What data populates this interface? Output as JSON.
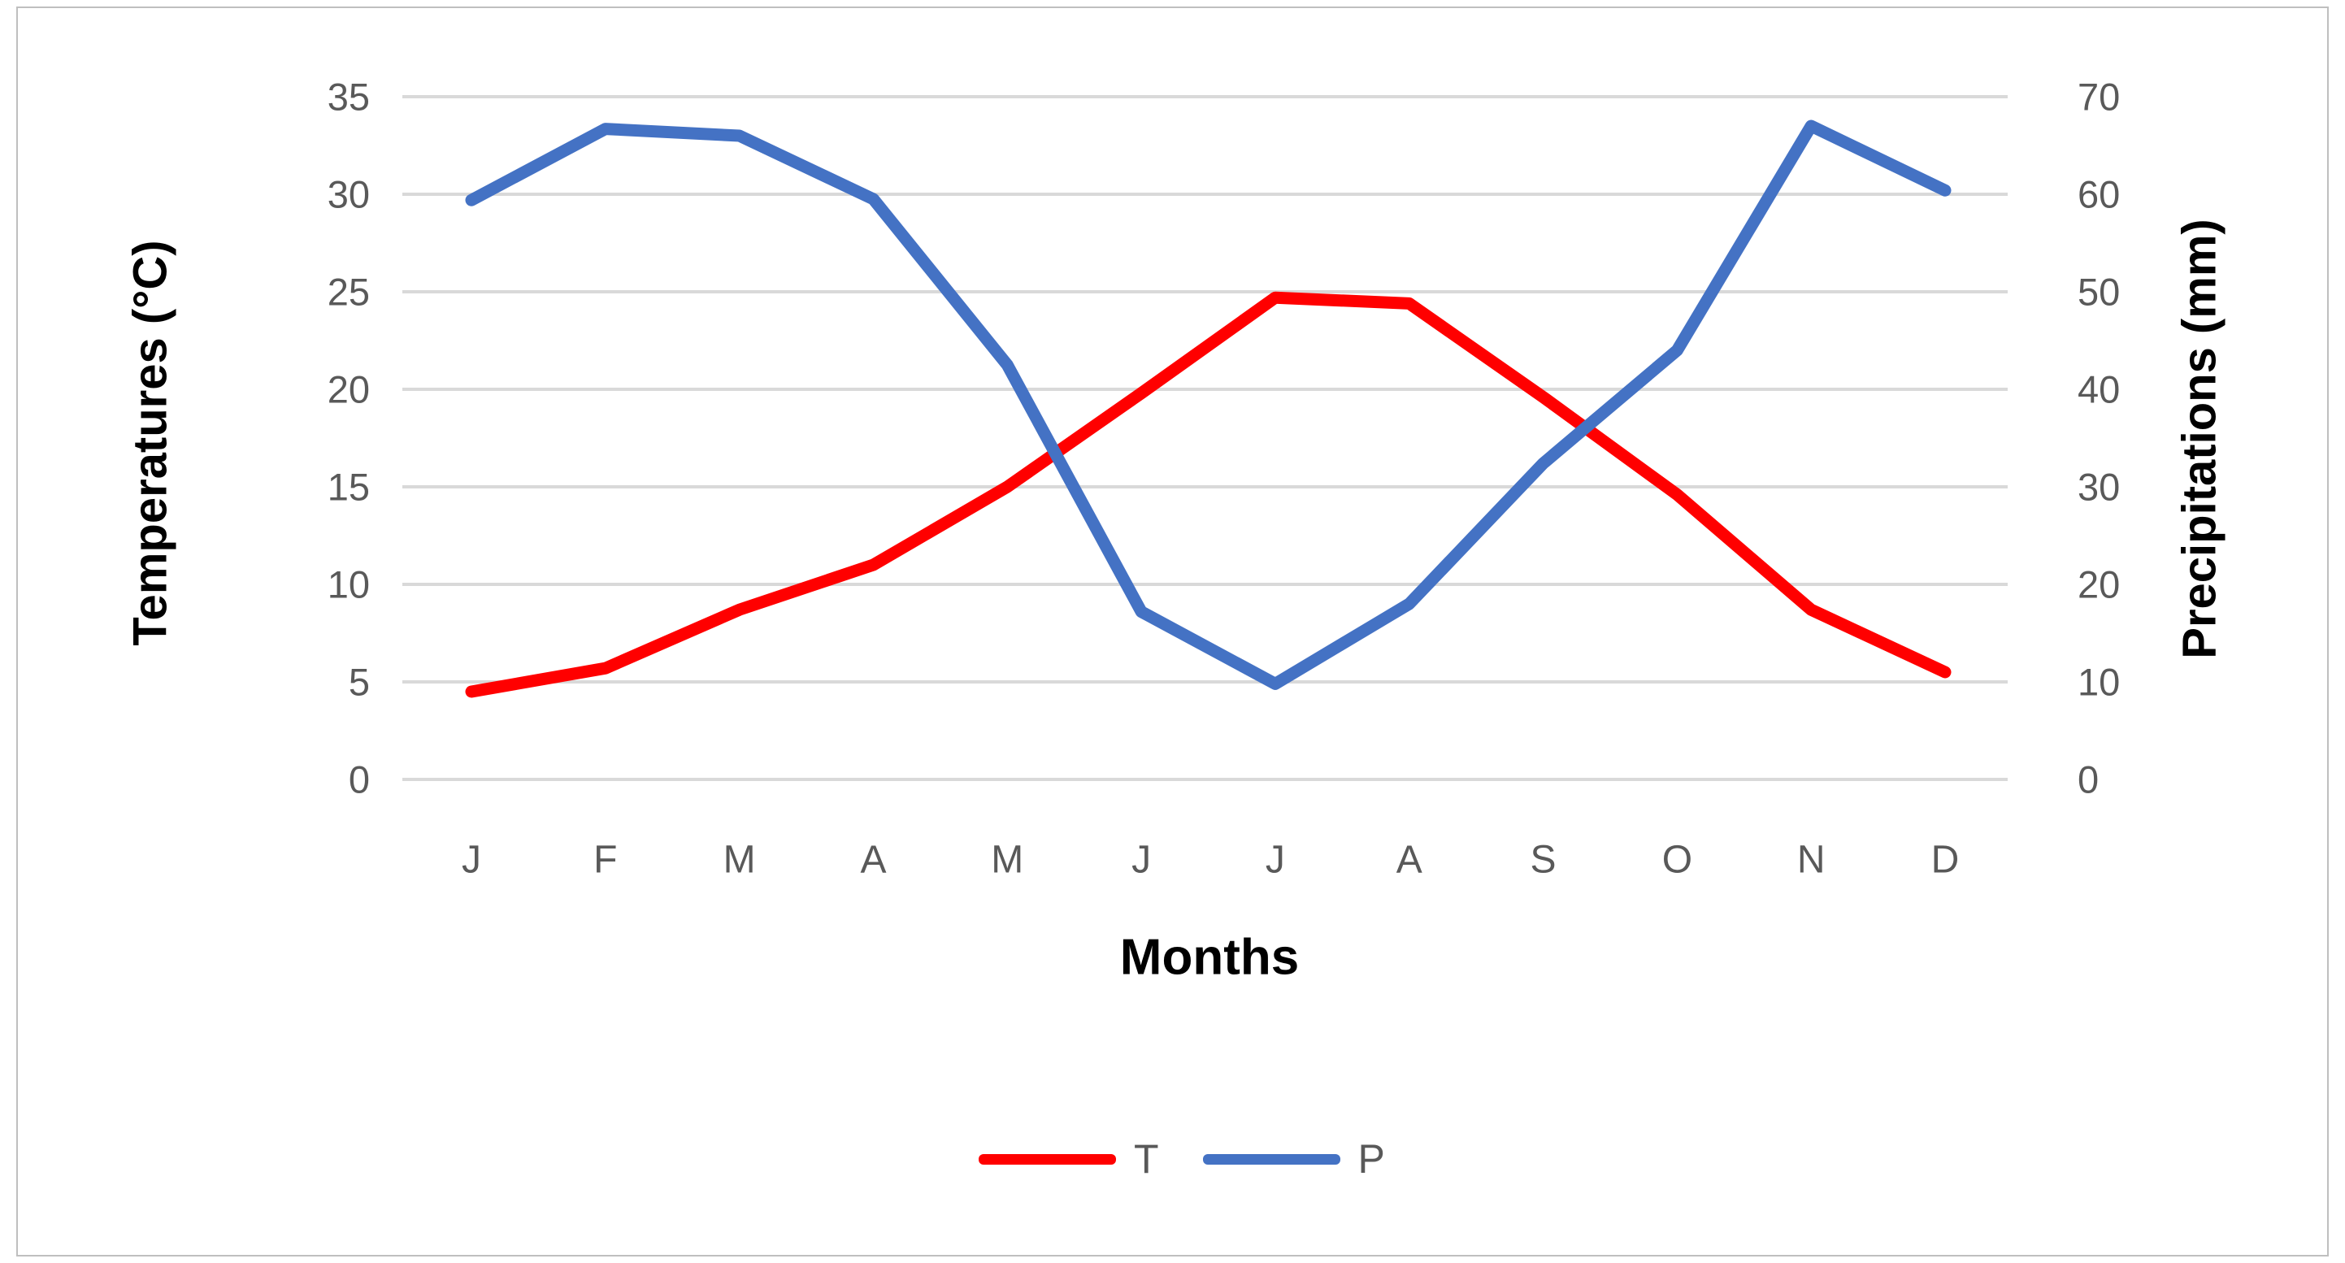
{
  "chart_data": {
    "type": "line",
    "categories": [
      "J",
      "F",
      "M",
      "A",
      "M",
      "J",
      "J",
      "A",
      "S",
      "O",
      "N",
      "D"
    ],
    "series": [
      {
        "name": "T",
        "axis": "left",
        "color": "#FF0000",
        "values": [
          4.5,
          5.7,
          8.7,
          11.0,
          15.0,
          19.8,
          24.7,
          24.4,
          19.6,
          14.6,
          8.7,
          5.5
        ]
      },
      {
        "name": "P",
        "axis": "right",
        "color": "#4472C4",
        "values": [
          59.4,
          66.7,
          66.0,
          59.5,
          42.5,
          17.2,
          9.8,
          18.0,
          32.4,
          44.0,
          67.0,
          60.4
        ]
      }
    ],
    "left_axis": {
      "title": "Temperatures (°C)",
      "min": 0,
      "max": 35,
      "step": 5,
      "ticks": [
        "35",
        "30",
        "25",
        "20",
        "15",
        "10",
        "5",
        "0"
      ]
    },
    "right_axis": {
      "title": "Precipitations (mm)",
      "min": 0,
      "max": 70,
      "step": 10,
      "ticks": [
        "70",
        "60",
        "50",
        "40",
        "30",
        "20",
        "10",
        "0"
      ]
    },
    "xlabel": "Months",
    "grid": true,
    "legend_position": "bottom",
    "legend": [
      "T",
      "P"
    ]
  },
  "colors": {
    "temperature_line": "#FF0000",
    "precipitation_line": "#4472C4",
    "gridline": "#D9D9D9",
    "tick_label": "#595959",
    "axis_title": "#000000",
    "frame_border": "#BFBFBF",
    "background": "#FFFFFF"
  }
}
